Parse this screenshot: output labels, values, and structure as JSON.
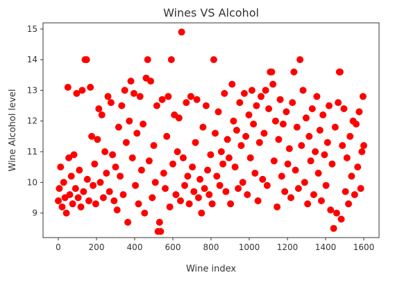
{
  "chart_data": {
    "type": "scatter",
    "title": "Wines VS Alcohol",
    "xlabel": "Wine index",
    "ylabel": "Wine Alcohol level",
    "xlim": [
      -80,
      1680
    ],
    "ylim": [
      8.2,
      15.2
    ],
    "xticks": [
      0,
      200,
      400,
      600,
      800,
      1000,
      1200,
      1400,
      1600
    ],
    "yticks": [
      9,
      10,
      11,
      12,
      13,
      14,
      15
    ],
    "grid": false,
    "marker_color": "#ff0000",
    "series": [
      {
        "points": [
          [
            0,
            9.4
          ],
          [
            5,
            9.8
          ],
          [
            12,
            10.5
          ],
          [
            20,
            9.2
          ],
          [
            28,
            10.0
          ],
          [
            35,
            9.5
          ],
          [
            42,
            9.0
          ],
          [
            50,
            13.1
          ],
          [
            55,
            10.8
          ],
          [
            60,
            9.6
          ],
          [
            68,
            10.2
          ],
          [
            75,
            9.3
          ],
          [
            82,
            10.9
          ],
          [
            90,
            9.8
          ],
          [
            96,
            12.9
          ],
          [
            104,
            9.5
          ],
          [
            110,
            10.4
          ],
          [
            118,
            9.2
          ],
          [
            125,
            13.0
          ],
          [
            132,
            9.7
          ],
          [
            140,
            14.0
          ],
          [
            148,
            14.0
          ],
          [
            152,
            10.1
          ],
          [
            160,
            9.4
          ],
          [
            168,
            13.1
          ],
          [
            175,
            11.5
          ],
          [
            182,
            9.9
          ],
          [
            190,
            10.6
          ],
          [
            196,
            9.3
          ],
          [
            205,
            11.4
          ],
          [
            212,
            12.4
          ],
          [
            220,
            10.0
          ],
          [
            228,
            12.2
          ],
          [
            236,
            9.5
          ],
          [
            244,
            11.0
          ],
          [
            252,
            10.3
          ],
          [
            260,
            12.8
          ],
          [
            268,
            9.7
          ],
          [
            276,
            12.6
          ],
          [
            284,
            10.9
          ],
          [
            292,
            9.4
          ],
          [
            300,
            10.5
          ],
          [
            308,
            9.1
          ],
          [
            316,
            11.8
          ],
          [
            324,
            10.2
          ],
          [
            332,
            12.5
          ],
          [
            340,
            9.6
          ],
          [
            348,
            13.0
          ],
          [
            356,
            11.3
          ],
          [
            364,
            8.7
          ],
          [
            372,
            12.0
          ],
          [
            380,
            13.3
          ],
          [
            388,
            10.8
          ],
          [
            396,
            12.9
          ],
          [
            404,
            9.9
          ],
          [
            412,
            11.6
          ],
          [
            420,
            9.3
          ],
          [
            428,
            12.8
          ],
          [
            436,
            10.4
          ],
          [
            444,
            11.9
          ],
          [
            452,
            9.0
          ],
          [
            460,
            13.4
          ],
          [
            468,
            14.0
          ],
          [
            476,
            10.7
          ],
          [
            484,
            13.3
          ],
          [
            492,
            9.5
          ],
          [
            500,
            11.2
          ],
          [
            508,
            10.0
          ],
          [
            516,
            12.5
          ],
          [
            522,
            8.4
          ],
          [
            530,
            8.7
          ],
          [
            536,
            8.4
          ],
          [
            544,
            12.7
          ],
          [
            552,
            10.3
          ],
          [
            560,
            9.8
          ],
          [
            568,
            11.5
          ],
          [
            576,
            12.8
          ],
          [
            584,
            9.2
          ],
          [
            592,
            14.0
          ],
          [
            600,
            10.6
          ],
          [
            608,
            12.2
          ],
          [
            616,
            9.6
          ],
          [
            624,
            11.0
          ],
          [
            632,
            12.1
          ],
          [
            640,
            9.4
          ],
          [
            646,
            14.9
          ],
          [
            654,
            10.8
          ],
          [
            662,
            9.9
          ],
          [
            670,
            12.6
          ],
          [
            678,
            10.2
          ],
          [
            686,
            9.3
          ],
          [
            694,
            12.8
          ],
          [
            702,
            10.5
          ],
          [
            710,
            9.7
          ],
          [
            718,
            11.3
          ],
          [
            726,
            12.7
          ],
          [
            734,
            9.5
          ],
          [
            742,
            10.1
          ],
          [
            750,
            9.0
          ],
          [
            758,
            11.8
          ],
          [
            766,
            9.8
          ],
          [
            774,
            12.5
          ],
          [
            782,
            10.4
          ],
          [
            790,
            9.6
          ],
          [
            798,
            10.9
          ],
          [
            806,
            9.3
          ],
          [
            814,
            14.0
          ],
          [
            822,
            11.6
          ],
          [
            830,
            10.2
          ],
          [
            838,
            12.3
          ],
          [
            846,
            9.9
          ],
          [
            854,
            11.0
          ],
          [
            862,
            10.6
          ],
          [
            870,
            12.9
          ],
          [
            878,
            9.7
          ],
          [
            886,
            11.4
          ],
          [
            894,
            10.8
          ],
          [
            902,
            9.3
          ],
          [
            910,
            13.2
          ],
          [
            918,
            12.0
          ],
          [
            926,
            10.5
          ],
          [
            934,
            11.7
          ],
          [
            942,
            9.8
          ],
          [
            950,
            12.6
          ],
          [
            958,
            11.2
          ],
          [
            966,
            10.0
          ],
          [
            974,
            12.9
          ],
          [
            982,
            11.5
          ],
          [
            990,
            9.6
          ],
          [
            998,
            12.2
          ],
          [
            1006,
            10.8
          ],
          [
            1014,
            13.0
          ],
          [
            1022,
            11.9
          ],
          [
            1030,
            10.3
          ],
          [
            1038,
            12.5
          ],
          [
            1046,
            9.4
          ],
          [
            1054,
            11.3
          ],
          [
            1062,
            12.8
          ],
          [
            1070,
            10.1
          ],
          [
            1078,
            11.6
          ],
          [
            1086,
            13.0
          ],
          [
            1094,
            9.9
          ],
          [
            1102,
            12.4
          ],
          [
            1110,
            13.6
          ],
          [
            1118,
            13.6
          ],
          [
            1124,
            13.2
          ],
          [
            1130,
            10.7
          ],
          [
            1138,
            12.0
          ],
          [
            1146,
            9.2
          ],
          [
            1154,
            11.4
          ],
          [
            1162,
            12.7
          ],
          [
            1170,
            10.2
          ],
          [
            1178,
            11.9
          ],
          [
            1186,
            9.7
          ],
          [
            1194,
            12.3
          ],
          [
            1202,
            10.6
          ],
          [
            1210,
            11.1
          ],
          [
            1218,
            9.5
          ],
          [
            1226,
            12.6
          ],
          [
            1234,
            13.6
          ],
          [
            1242,
            10.4
          ],
          [
            1250,
            11.8
          ],
          [
            1258,
            9.8
          ],
          [
            1266,
            14.0
          ],
          [
            1274,
            11.2
          ],
          [
            1282,
            13.0
          ],
          [
            1290,
            10.0
          ],
          [
            1298,
            12.1
          ],
          [
            1306,
            9.3
          ],
          [
            1314,
            11.5
          ],
          [
            1322,
            10.7
          ],
          [
            1330,
            12.4
          ],
          [
            1338,
            9.6
          ],
          [
            1346,
            11.0
          ],
          [
            1354,
            12.8
          ],
          [
            1362,
            10.3
          ],
          [
            1370,
            11.7
          ],
          [
            1378,
            9.4
          ],
          [
            1386,
            12.2
          ],
          [
            1394,
            10.9
          ],
          [
            1402,
            9.9
          ],
          [
            1410,
            11.3
          ],
          [
            1418,
            12.5
          ],
          [
            1426,
            9.1
          ],
          [
            1434,
            10.6
          ],
          [
            1442,
            8.5
          ],
          [
            1450,
            11.8
          ],
          [
            1458,
            9.0
          ],
          [
            1466,
            12.6
          ],
          [
            1472,
            13.6
          ],
          [
            1476,
            13.6
          ],
          [
            1482,
            8.8
          ],
          [
            1488,
            11.2
          ],
          [
            1496,
            12.4
          ],
          [
            1504,
            9.7
          ],
          [
            1512,
            10.8
          ],
          [
            1520,
            9.3
          ],
          [
            1528,
            11.5
          ],
          [
            1536,
            10.2
          ],
          [
            1544,
            12.0
          ],
          [
            1552,
            9.6
          ],
          [
            1560,
            11.9
          ],
          [
            1568,
            10.5
          ],
          [
            1576,
            12.3
          ],
          [
            1584,
            9.8
          ],
          [
            1590,
            11.0
          ],
          [
            1596,
            12.8
          ],
          [
            1600,
            11.2
          ]
        ]
      }
    ]
  }
}
